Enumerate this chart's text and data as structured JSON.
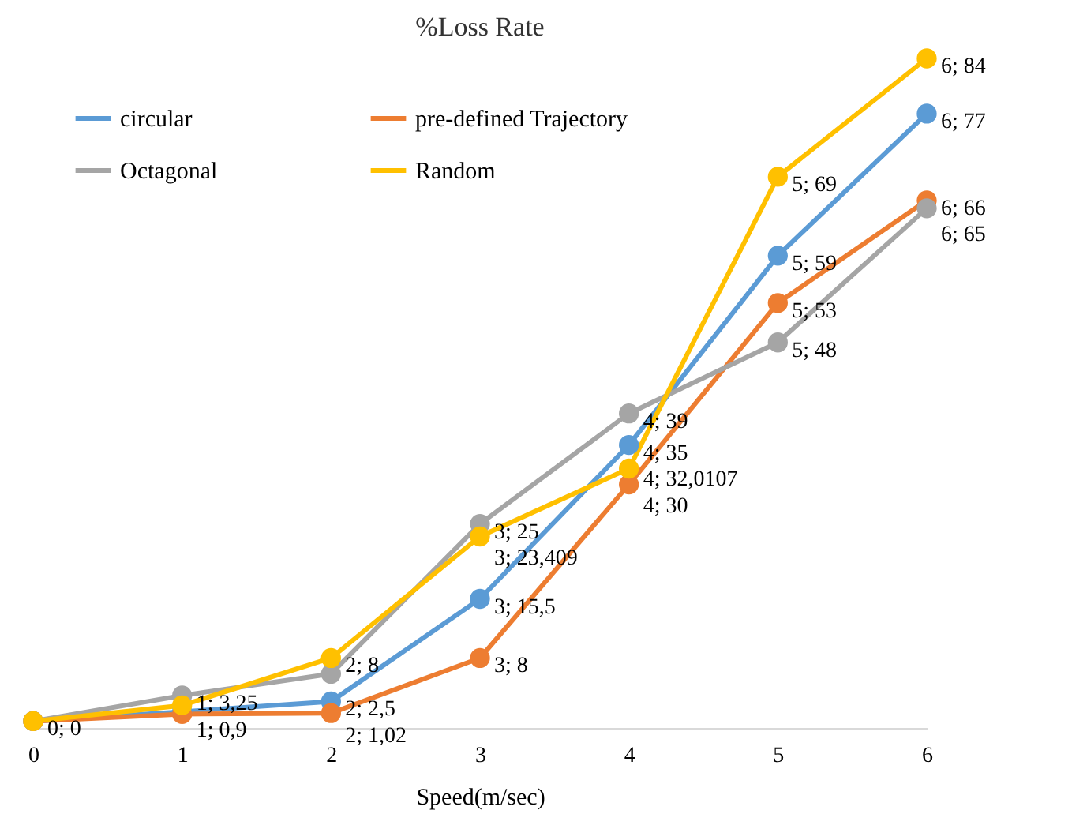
{
  "chart_data": {
    "type": "line",
    "title": "%Loss Rate",
    "xlabel": "Speed(m/sec)",
    "x": [
      0,
      1,
      2,
      3,
      4,
      5,
      6
    ],
    "series": [
      {
        "name": "circular",
        "color": "#5b9bd5",
        "values": [
          0,
          1.2,
          2.5,
          15.5,
          35,
          59,
          77
        ],
        "value_labels": [
          null,
          null,
          "2; 2,5",
          "3; 15,5",
          "4; 35",
          "5; 59",
          "6; 77"
        ]
      },
      {
        "name": "pre-defined Trajectory",
        "color": "#ed7d31",
        "values": [
          0,
          0.9,
          1.02,
          8,
          30,
          53,
          66
        ],
        "value_labels": [
          null,
          "1; 0,9",
          "2; 1,02",
          "3; 8",
          "4; 30",
          "5; 53",
          "6; 66"
        ]
      },
      {
        "name": "Octagonal",
        "color": "#a5a5a5",
        "values": [
          0,
          3.25,
          6,
          25,
          39,
          48,
          65
        ],
        "value_labels": [
          null,
          "1; 3,25",
          null,
          "3; 25",
          "4; 39",
          "5; 48",
          "6; 65"
        ]
      },
      {
        "name": "Random",
        "color": "#ffc000",
        "values": [
          0,
          2,
          8,
          23.409,
          32.0107,
          69,
          84
        ],
        "value_labels": [
          "0; 0",
          null,
          "2; 8",
          "3; 23,409",
          "4; 32,0107",
          "5; 69",
          "6; 84"
        ]
      }
    ],
    "xlim": [
      0,
      6
    ],
    "xticks": [
      0,
      1,
      2,
      3,
      4,
      5,
      6
    ],
    "tick_labels": "x",
    "legend": "top left",
    "marker": "circle",
    "line_style": "solid"
  }
}
